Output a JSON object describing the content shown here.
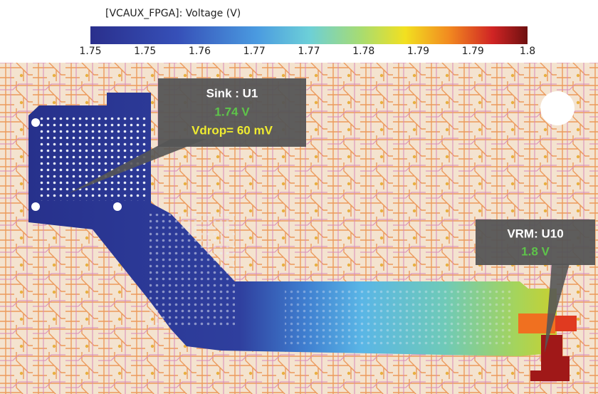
{
  "colorbar": {
    "title": "[VCAUX_FPGA]: Voltage (V)",
    "tick_labels": [
      "1.75",
      "1.75",
      "1.76",
      "1.77",
      "1.77",
      "1.78",
      "1.79",
      "1.79",
      "1.8"
    ]
  },
  "callouts": [
    {
      "label": "Sink : U1",
      "voltage": "1.74 V",
      "note": "Vdrop= 60 mV"
    },
    {
      "label": "VRM: U10",
      "voltage": "1.8 V"
    }
  ]
}
